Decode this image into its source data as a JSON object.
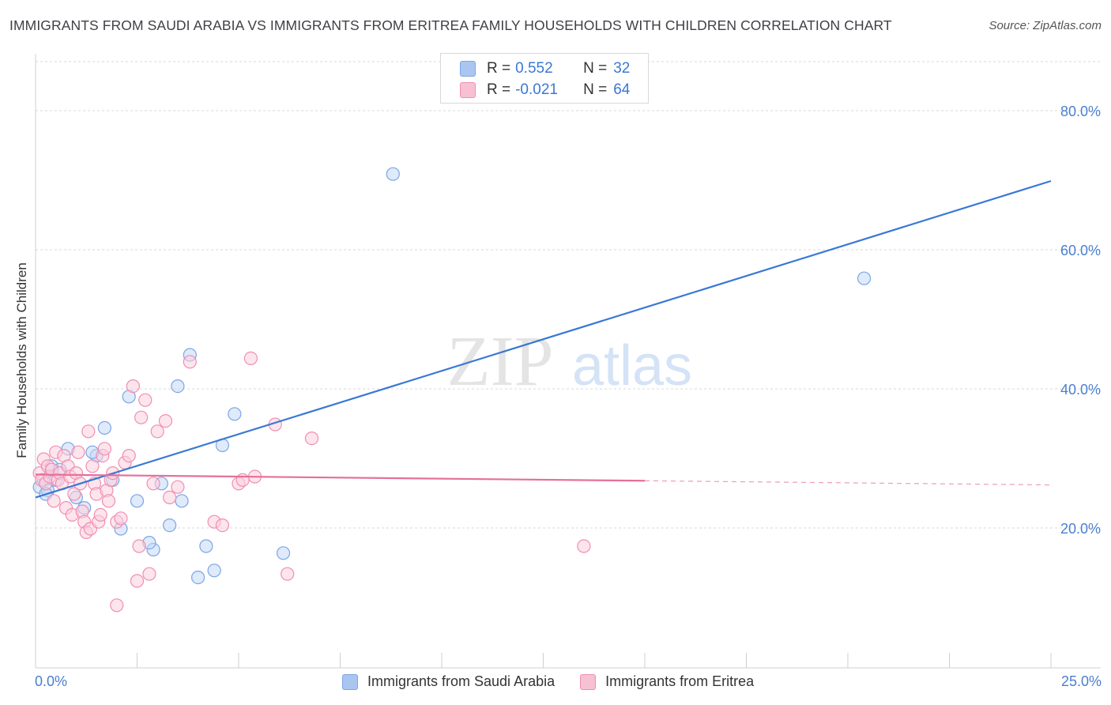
{
  "title": "IMMIGRANTS FROM SAUDI ARABIA VS IMMIGRANTS FROM ERITREA FAMILY HOUSEHOLDS WITH CHILDREN CORRELATION CHART",
  "source": "Source: ZipAtlas.com",
  "watermark": {
    "zip": "ZIP",
    "atlas": "atlas"
  },
  "legend": {
    "rows": [
      {
        "r_label": "R =",
        "r_value": "0.552",
        "n_label": "N =",
        "n_value": "32",
        "color": "#aac6f0",
        "border": "#7aa6e6"
      },
      {
        "r_label": "R =",
        "r_value": "-0.021",
        "n_label": "N =",
        "n_value": "64",
        "color": "#f8c0d3",
        "border": "#f08eb0"
      }
    ]
  },
  "chart_data": {
    "type": "scatter",
    "xlabel": "",
    "ylabel": "Family Households with Children",
    "xlim": [
      0,
      25
    ],
    "ylim": [
      0,
      85
    ],
    "x_tick_labels": {
      "min": "0.0%",
      "max": "25.0%"
    },
    "y_ticks": [
      {
        "value": 20,
        "label": "20.0%"
      },
      {
        "value": 40,
        "label": "40.0%"
      },
      {
        "value": 60,
        "label": "60.0%"
      },
      {
        "value": 80,
        "label": "80.0%"
      }
    ],
    "grid": true,
    "series": [
      {
        "name": "Immigrants from Saudi Arabia",
        "color": "#7aa6e6",
        "fill": "#c5d9f5",
        "trend_color": "#3a78d4",
        "trend": {
          "x": [
            0.0,
            25.0
          ],
          "y": [
            24.5,
            70.0
          ]
        },
        "points": [
          [
            0.1,
            26.0
          ],
          [
            0.2,
            27.0
          ],
          [
            0.3,
            25.5
          ],
          [
            0.4,
            29.0
          ],
          [
            0.5,
            27.0
          ],
          [
            0.6,
            28.5
          ],
          [
            0.8,
            31.5
          ],
          [
            1.0,
            24.5
          ],
          [
            1.2,
            23.0
          ],
          [
            1.5,
            30.5
          ],
          [
            1.7,
            34.5
          ],
          [
            1.4,
            31.0
          ],
          [
            1.9,
            27.0
          ],
          [
            2.1,
            20.0
          ],
          [
            2.3,
            39.0
          ],
          [
            2.5,
            24.0
          ],
          [
            2.9,
            17.0
          ],
          [
            3.1,
            26.5
          ],
          [
            2.8,
            18.0
          ],
          [
            3.3,
            20.5
          ],
          [
            3.5,
            40.5
          ],
          [
            3.6,
            24.0
          ],
          [
            3.8,
            45.0
          ],
          [
            4.0,
            13.0
          ],
          [
            4.2,
            17.5
          ],
          [
            4.4,
            14.0
          ],
          [
            4.6,
            32.0
          ],
          [
            4.9,
            36.5
          ],
          [
            6.1,
            16.5
          ],
          [
            8.8,
            71.0
          ],
          [
            20.4,
            56.0
          ],
          [
            0.25,
            25.0
          ]
        ]
      },
      {
        "name": "Immigrants from Eritrea",
        "color": "#f08eb0",
        "fill": "#fbd0df",
        "trend_color": "#e5709a",
        "trend": {
          "x": [
            0.0,
            15.0
          ],
          "y": [
            27.8,
            26.9
          ]
        },
        "trend_dashed": {
          "x": [
            15.0,
            25.0
          ],
          "y": [
            26.9,
            26.3
          ]
        },
        "points": [
          [
            0.1,
            28.0
          ],
          [
            0.15,
            27.0
          ],
          [
            0.2,
            30.0
          ],
          [
            0.25,
            26.5
          ],
          [
            0.3,
            29.0
          ],
          [
            0.35,
            27.5
          ],
          [
            0.4,
            28.5
          ],
          [
            0.45,
            24.0
          ],
          [
            0.5,
            31.0
          ],
          [
            0.55,
            27.0
          ],
          [
            0.6,
            28.0
          ],
          [
            0.65,
            26.5
          ],
          [
            0.7,
            30.5
          ],
          [
            0.75,
            23.0
          ],
          [
            0.8,
            29.0
          ],
          [
            0.85,
            27.5
          ],
          [
            0.9,
            22.0
          ],
          [
            0.95,
            25.0
          ],
          [
            1.0,
            28.0
          ],
          [
            1.05,
            31.0
          ],
          [
            1.1,
            26.5
          ],
          [
            1.15,
            22.5
          ],
          [
            1.2,
            21.0
          ],
          [
            1.25,
            19.5
          ],
          [
            1.3,
            34.0
          ],
          [
            1.35,
            20.0
          ],
          [
            1.4,
            29.0
          ],
          [
            1.45,
            26.5
          ],
          [
            1.5,
            25.0
          ],
          [
            1.55,
            21.0
          ],
          [
            1.6,
            22.0
          ],
          [
            1.65,
            30.5
          ],
          [
            1.7,
            31.5
          ],
          [
            1.75,
            25.5
          ],
          [
            1.8,
            24.0
          ],
          [
            1.85,
            27.0
          ],
          [
            1.9,
            28.0
          ],
          [
            2.0,
            21.0
          ],
          [
            2.1,
            21.5
          ],
          [
            2.2,
            29.5
          ],
          [
            2.3,
            30.5
          ],
          [
            2.4,
            40.5
          ],
          [
            2.5,
            12.5
          ],
          [
            2.55,
            17.5
          ],
          [
            2.6,
            36.0
          ],
          [
            2.7,
            38.5
          ],
          [
            2.8,
            13.5
          ],
          [
            2.9,
            26.5
          ],
          [
            3.0,
            34.0
          ],
          [
            3.2,
            35.5
          ],
          [
            3.3,
            24.5
          ],
          [
            3.5,
            26.0
          ],
          [
            3.8,
            44.0
          ],
          [
            4.4,
            21.0
          ],
          [
            4.6,
            20.5
          ],
          [
            5.0,
            26.5
          ],
          [
            5.1,
            27.0
          ],
          [
            5.3,
            44.5
          ],
          [
            5.4,
            27.5
          ],
          [
            5.9,
            35.0
          ],
          [
            6.2,
            13.5
          ],
          [
            6.8,
            33.0
          ],
          [
            13.5,
            17.5
          ],
          [
            2.0,
            9.0
          ]
        ]
      }
    ]
  }
}
